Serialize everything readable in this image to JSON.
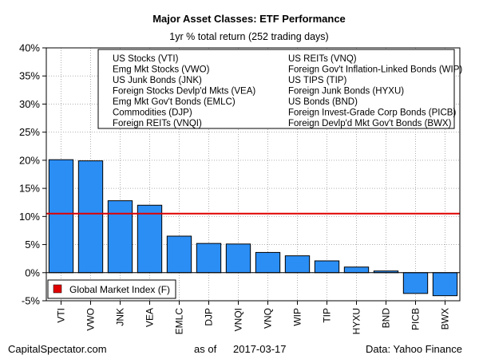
{
  "chart_data": {
    "type": "bar",
    "title": "Major Asset Classes: ETF Performance",
    "subtitle": "1yr % total return (252 trading days)",
    "categories": [
      "VTI",
      "VWO",
      "JNK",
      "VEA",
      "EMLC",
      "DJP",
      "VNQI",
      "VNQ",
      "WIP",
      "TIP",
      "HYXU",
      "BND",
      "PICB",
      "BWX"
    ],
    "values": [
      20.1,
      19.9,
      12.8,
      12.0,
      6.5,
      5.2,
      5.1,
      3.6,
      3.0,
      2.1,
      1.0,
      0.3,
      -3.7,
      -4.1
    ],
    "ylim": [
      -5,
      40
    ],
    "yticks": [
      -5,
      0,
      5,
      10,
      15,
      20,
      25,
      30,
      35,
      40
    ],
    "ytick_labels": [
      "-5%",
      "0%",
      "5%",
      "10%",
      "15%",
      "20%",
      "25%",
      "30%",
      "35%",
      "40%"
    ],
    "grid": true,
    "bar_color": "#2b8ef5",
    "reference_line": {
      "value": 10.5,
      "label": "Global Market Index (F)",
      "color": "#e00000"
    },
    "legend_left": [
      "US Stocks (VTI)",
      "Emg Mkt Stocks (VWO)",
      "US Junk Bonds (JNK)",
      "Foreign Stocks Devlp'd Mkts (VEA)",
      "Emg Mkt Gov't Bonds (EMLC)",
      "Commodities (DJP)",
      "Foreign REITs (VNQI)"
    ],
    "legend_right": [
      "US REITs (VNQ)",
      "Foreign Gov't Inflation-Linked Bonds (WIP)",
      "US TIPS (TIP)",
      "Foreign Junk Bonds (HYXU)",
      "US Bonds (BND)",
      "Foreign Invest-Grade Corp Bonds (PICB)",
      "Foreign Devlp'd Mkt Gov't Bonds (BWX)"
    ]
  },
  "footer": {
    "source_left": "CapitalSpectator.com",
    "as_of_label": "as of",
    "as_of_date": "2017-03-17",
    "data_source": "Data: Yahoo Finance"
  }
}
